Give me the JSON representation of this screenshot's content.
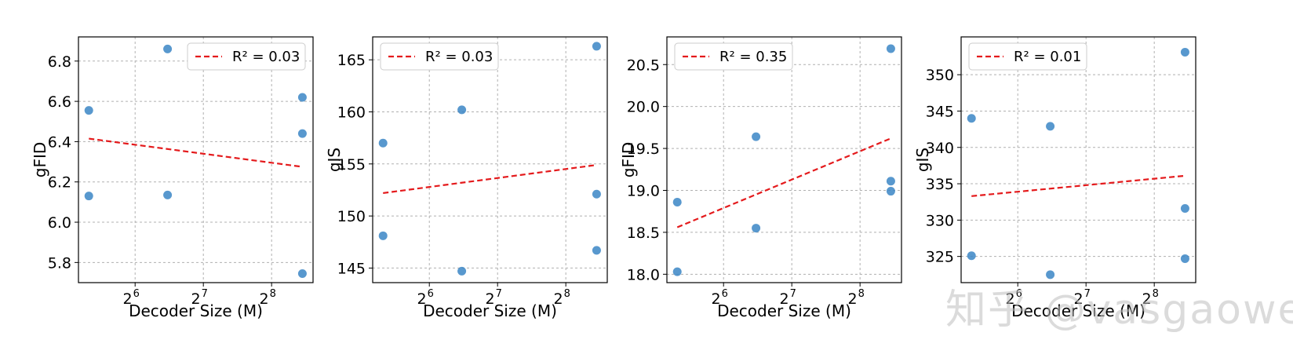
{
  "watermark": "知乎 @vasgaowei",
  "colors": {
    "point": "#3b86c6",
    "fit_line": "#e41a1c",
    "grid": "#b0b0b0"
  },
  "chart_data": [
    {
      "type": "scatter",
      "xlabel": "Decoder Size (M)",
      "ylabel": "gFID",
      "xscale": "log2",
      "xlim": [
        36,
        390
      ],
      "ylim": [
        5.7,
        6.92
      ],
      "xticks": [
        64,
        128,
        256
      ],
      "xtick_bases": [
        "2",
        "2",
        "2"
      ],
      "xtick_exps": [
        "6",
        "7",
        "8"
      ],
      "yticks": [
        5.8,
        6.0,
        6.2,
        6.4,
        6.6,
        6.8
      ],
      "ytick_labels": [
        "5.8",
        "6.0",
        "6.2",
        "6.4",
        "6.6",
        "6.8"
      ],
      "points": [
        {
          "x": 40,
          "y": 6.555
        },
        {
          "x": 40,
          "y": 6.13
        },
        {
          "x": 89,
          "y": 6.86
        },
        {
          "x": 89,
          "y": 6.135
        },
        {
          "x": 350,
          "y": 6.62
        },
        {
          "x": 350,
          "y": 6.44
        },
        {
          "x": 350,
          "y": 5.745
        }
      ],
      "fit": {
        "x0": 40,
        "y0": 6.415,
        "x1": 350,
        "y1": 6.275
      },
      "legend": {
        "label": "R² = 0.03",
        "position": "top-right"
      }
    },
    {
      "type": "scatter",
      "xlabel": "Decoder Size (M)",
      "ylabel": "gIS",
      "xscale": "log2",
      "xlim": [
        36,
        390
      ],
      "ylim": [
        143.6,
        167.2
      ],
      "xticks": [
        64,
        128,
        256
      ],
      "xtick_bases": [
        "2",
        "2",
        "2"
      ],
      "xtick_exps": [
        "6",
        "7",
        "8"
      ],
      "yticks": [
        145,
        150,
        155,
        160,
        165
      ],
      "ytick_labels": [
        "145",
        "150",
        "155",
        "160",
        "165"
      ],
      "points": [
        {
          "x": 40,
          "y": 157.0
        },
        {
          "x": 40,
          "y": 148.1
        },
        {
          "x": 89,
          "y": 160.2
        },
        {
          "x": 89,
          "y": 144.7
        },
        {
          "x": 350,
          "y": 166.3
        },
        {
          "x": 350,
          "y": 152.1
        },
        {
          "x": 350,
          "y": 146.7
        }
      ],
      "fit": {
        "x0": 40,
        "y0": 152.2,
        "x1": 350,
        "y1": 154.9
      },
      "legend": {
        "label": "R² = 0.03",
        "position": "top-left"
      }
    },
    {
      "type": "scatter",
      "xlabel": "Decoder Size (M)",
      "ylabel": "gFID",
      "xscale": "log2",
      "xlim": [
        36,
        390
      ],
      "ylim": [
        17.9,
        20.83
      ],
      "xticks": [
        64,
        128,
        256
      ],
      "xtick_bases": [
        "2",
        "2",
        "2"
      ],
      "xtick_exps": [
        "6",
        "7",
        "8"
      ],
      "yticks": [
        18.0,
        18.5,
        19.0,
        19.5,
        20.0,
        20.5
      ],
      "ytick_labels": [
        "18.0",
        "18.5",
        "19.0",
        "19.5",
        "20.0",
        "20.5"
      ],
      "points": [
        {
          "x": 40,
          "y": 18.86
        },
        {
          "x": 40,
          "y": 18.03
        },
        {
          "x": 89,
          "y": 19.64
        },
        {
          "x": 89,
          "y": 18.55
        },
        {
          "x": 350,
          "y": 20.69
        },
        {
          "x": 350,
          "y": 19.11
        },
        {
          "x": 350,
          "y": 18.99
        }
      ],
      "fit": {
        "x0": 40,
        "y0": 18.56,
        "x1": 350,
        "y1": 19.62
      },
      "legend": {
        "label": "R² = 0.35",
        "position": "top-left"
      }
    },
    {
      "type": "scatter",
      "xlabel": "Decoder Size (M)",
      "ylabel": "gIS",
      "xscale": "log2",
      "xlim": [
        36,
        390
      ],
      "ylim": [
        321.4,
        355.2
      ],
      "xticks": [
        64,
        128,
        256
      ],
      "xtick_bases": [
        "2",
        "2",
        "2"
      ],
      "xtick_exps": [
        "6",
        "7",
        "8"
      ],
      "yticks": [
        325,
        330,
        335,
        340,
        345,
        350
      ],
      "ytick_labels": [
        "325",
        "330",
        "335",
        "340",
        "345",
        "350"
      ],
      "points": [
        {
          "x": 40,
          "y": 344.0
        },
        {
          "x": 40,
          "y": 325.1
        },
        {
          "x": 89,
          "y": 342.9
        },
        {
          "x": 89,
          "y": 322.5
        },
        {
          "x": 350,
          "y": 353.1
        },
        {
          "x": 350,
          "y": 331.6
        },
        {
          "x": 350,
          "y": 324.7
        }
      ],
      "fit": {
        "x0": 40,
        "y0": 333.3,
        "x1": 350,
        "y1": 336.1
      },
      "legend": {
        "label": "R² = 0.01",
        "position": "top-left"
      }
    }
  ]
}
